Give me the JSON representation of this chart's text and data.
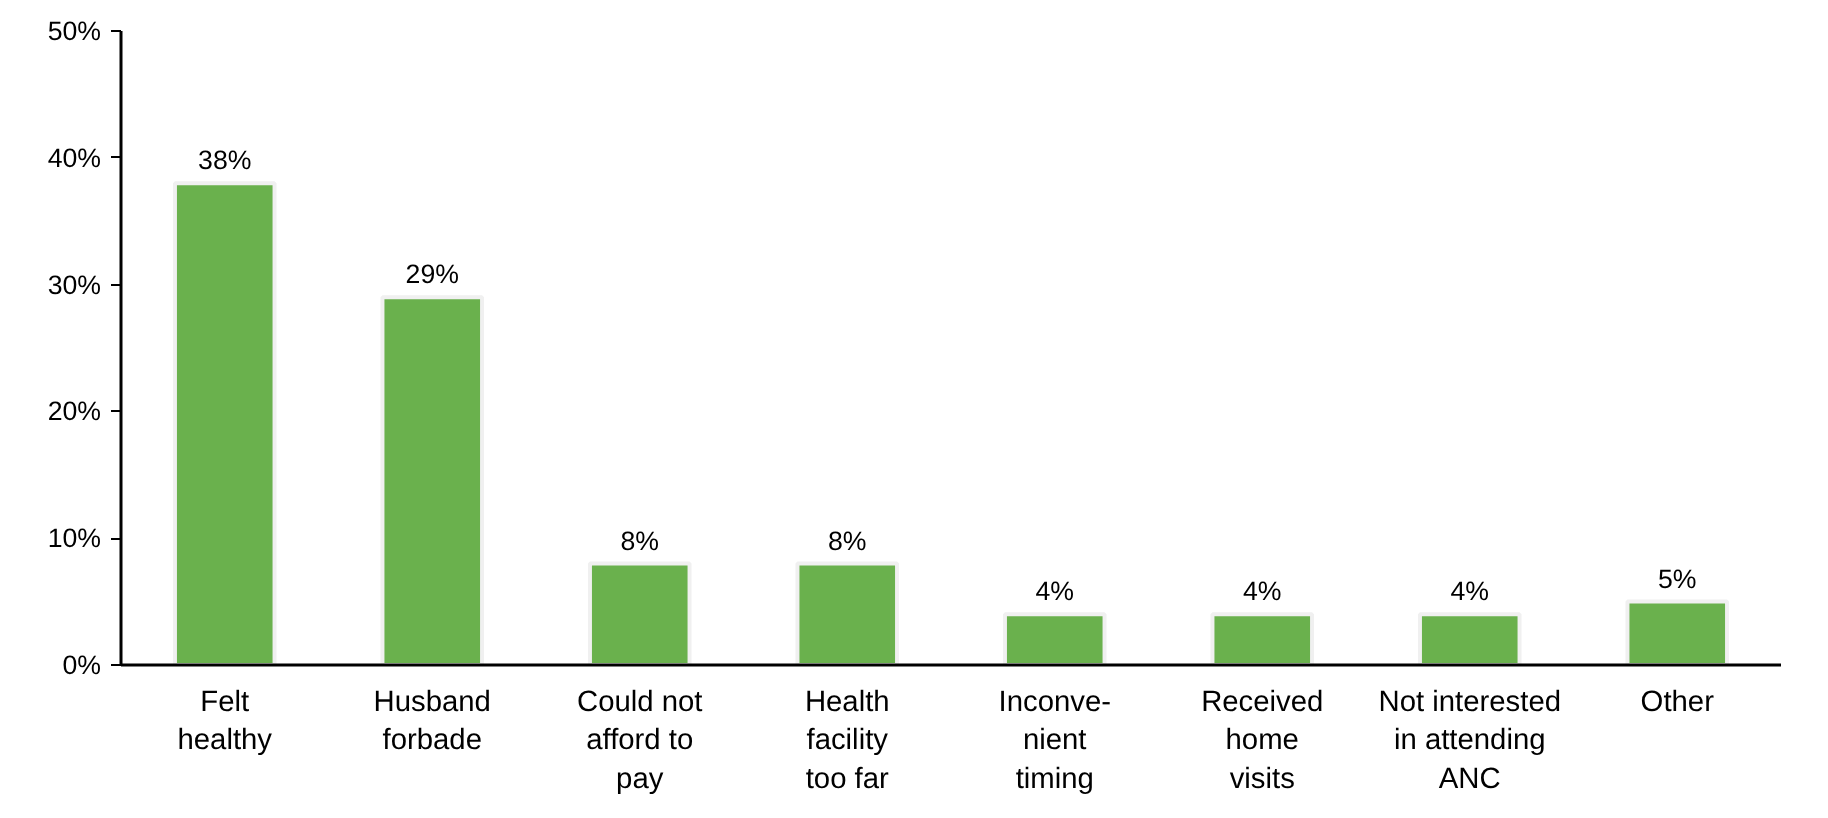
{
  "chart_data": {
    "type": "bar",
    "categories": [
      "Felt\nhealthy",
      "Husband\nforbade",
      "Could not\nafford to\npay",
      "Health\nfacility\ntoo far",
      "Inconve-\nnient\ntiming",
      "Received\nhome\nvisits",
      "Not interested\nin attending\nANC",
      "Other"
    ],
    "values": [
      38,
      29,
      8,
      8,
      4,
      4,
      4,
      5
    ],
    "value_labels": [
      "38%",
      "29%",
      "8%",
      "8%",
      "4%",
      "4%",
      "4%",
      "5%"
    ],
    "color": "#6ab14d",
    "ylim": [
      0,
      50
    ],
    "yticks": [
      {
        "value": 0,
        "label": "0%"
      },
      {
        "value": 10,
        "label": "10%"
      },
      {
        "value": 20,
        "label": "20%"
      },
      {
        "value": 30,
        "label": "30%"
      },
      {
        "value": 40,
        "label": "40%"
      },
      {
        "value": 50,
        "label": "50%"
      }
    ],
    "grid": false
  }
}
